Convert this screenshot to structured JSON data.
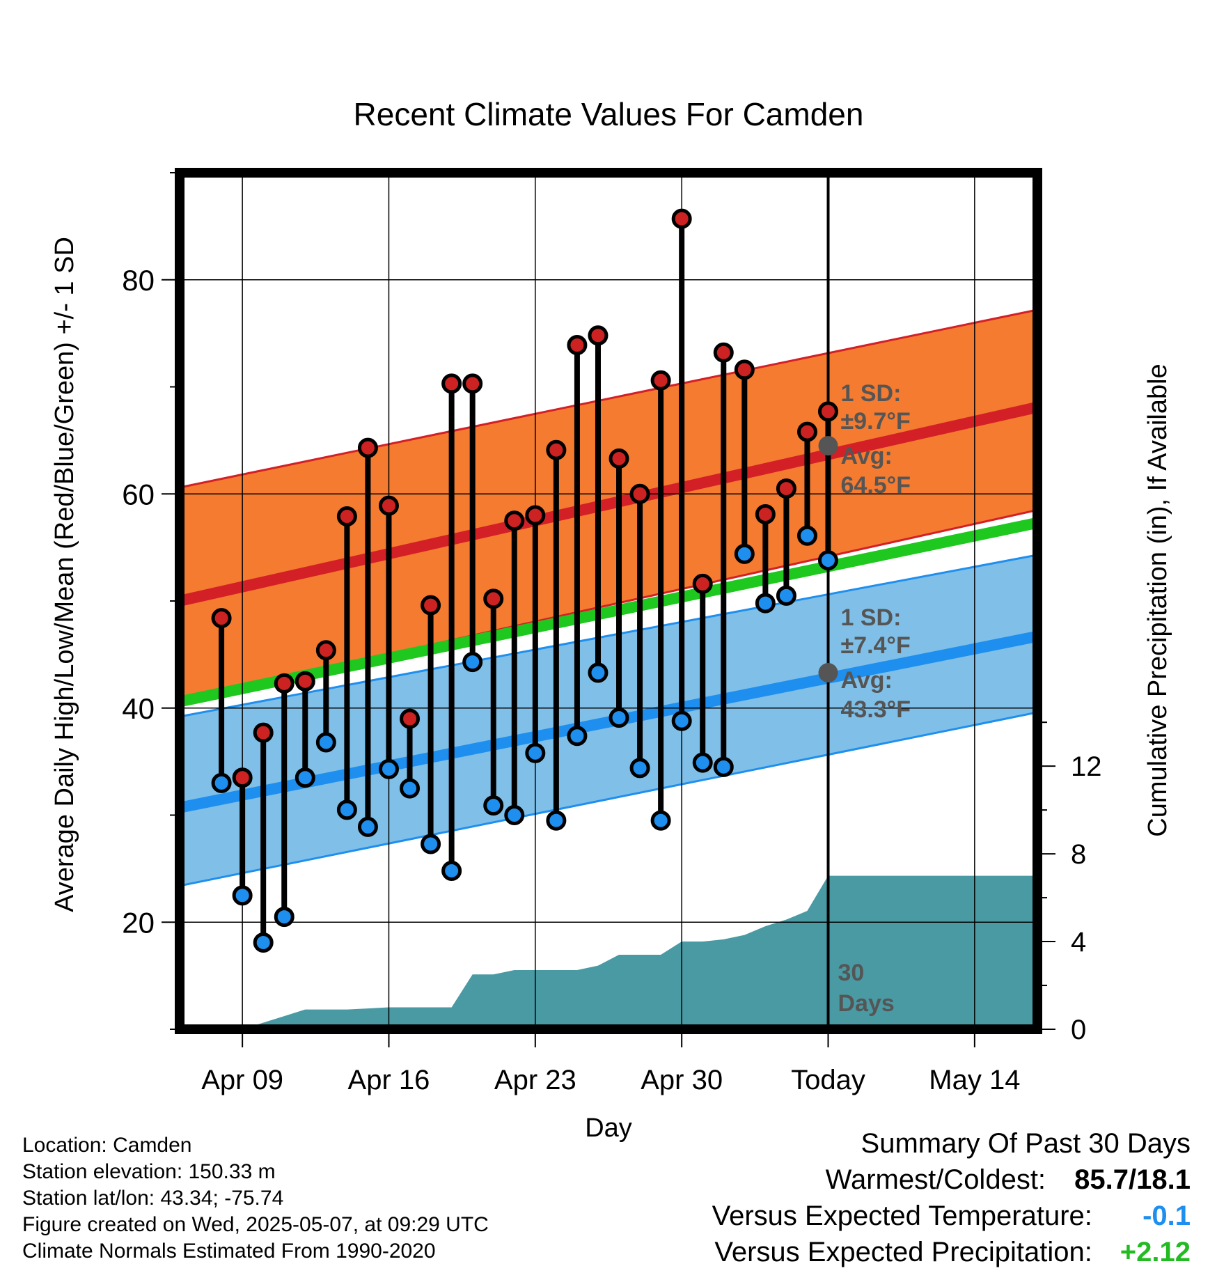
{
  "chart_data": {
    "type": "line",
    "title": "Recent Climate Values For Camden",
    "xlabel": "Day",
    "ylabel": "Average Daily High/Low/Mean (Red/Blue/Green) +/- 1 SD",
    "y2label": "Cumulative Precipitation (in), If Available",
    "xlim": [
      "2025-04-06",
      "2025-05-17"
    ],
    "ylim": [
      10,
      90
    ],
    "y2lim": [
      0,
      25
    ],
    "xticks": [
      "Apr 09",
      "Apr 16",
      "Apr 23",
      "Apr 30",
      "Today",
      "May 14"
    ],
    "yticks": [
      20,
      40,
      60,
      80
    ],
    "y2ticks": [
      0,
      4,
      8,
      12
    ],
    "grid": true,
    "today": "2025-05-07",
    "daily": {
      "dates": [
        "2025-04-08",
        "2025-04-09",
        "2025-04-10",
        "2025-04-11",
        "2025-04-12",
        "2025-04-13",
        "2025-04-14",
        "2025-04-15",
        "2025-04-16",
        "2025-04-17",
        "2025-04-18",
        "2025-04-19",
        "2025-04-20",
        "2025-04-21",
        "2025-04-22",
        "2025-04-23",
        "2025-04-24",
        "2025-04-25",
        "2025-04-26",
        "2025-04-27",
        "2025-04-28",
        "2025-04-29",
        "2025-04-30",
        "2025-05-01",
        "2025-05-02",
        "2025-05-03",
        "2025-05-04",
        "2025-05-05",
        "2025-05-06"
      ],
      "high": [
        48.4,
        33.5,
        37.7,
        42.3,
        42.5,
        45.4,
        57.9,
        64.3,
        58.9,
        39.0,
        49.6,
        70.3,
        70.3,
        50.2,
        57.5,
        58.0,
        64.1,
        73.9,
        74.8,
        63.3,
        60.0,
        70.6,
        85.7,
        51.6,
        73.2,
        71.6,
        58.1,
        60.5,
        65.8
      ],
      "low": [
        33.0,
        22.5,
        18.1,
        20.5,
        33.5,
        36.8,
        30.5,
        28.9,
        34.3,
        32.5,
        27.3,
        24.8,
        44.3,
        30.9,
        30.0,
        35.8,
        29.5,
        37.4,
        43.3,
        39.1,
        34.4,
        29.5,
        38.8,
        34.9,
        34.5,
        54.4,
        49.8,
        50.5,
        56.1
      ]
    },
    "daily_extra": {
      "date": "2025-05-06b",
      "high": 67.7,
      "low": 53.8
    },
    "normals": {
      "high_avg": [
        50.0,
        68.1
      ],
      "high_sd_upper": [
        60.6,
        77.2
      ],
      "high_sd_lower": [
        40.7,
        58.5
      ],
      "mean_avg": [
        40.6,
        57.3
      ],
      "low_avg": [
        30.7,
        46.7
      ],
      "low_sd_upper": [
        39.2,
        54.3
      ],
      "low_sd_lower": [
        23.4,
        39.6
      ],
      "dates": [
        "2025-04-06",
        "2025-05-17"
      ]
    },
    "precip_cumulative": {
      "dates": [
        "2025-04-09",
        "2025-04-10",
        "2025-04-11",
        "2025-04-12",
        "2025-04-13",
        "2025-04-14",
        "2025-04-15",
        "2025-04-16",
        "2025-04-17",
        "2025-04-18",
        "2025-04-19",
        "2025-04-20",
        "2025-04-21",
        "2025-04-22",
        "2025-04-23",
        "2025-04-24",
        "2025-04-25",
        "2025-04-26",
        "2025-04-27",
        "2025-04-28",
        "2025-04-29",
        "2025-04-30",
        "2025-05-01",
        "2025-05-02",
        "2025-05-03",
        "2025-05-04",
        "2025-05-05",
        "2025-05-06",
        "2025-05-07",
        "2025-05-17"
      ],
      "values": [
        0.0,
        0.3,
        0.6,
        0.9,
        0.9,
        0.9,
        0.95,
        1.0,
        1.0,
        1.0,
        1.0,
        2.5,
        2.5,
        2.7,
        2.7,
        2.7,
        2.7,
        2.9,
        3.4,
        3.4,
        3.4,
        4.0,
        4.0,
        4.1,
        4.3,
        4.7,
        5.0,
        5.4,
        7.0,
        7.0
      ]
    },
    "annotations": {
      "high": {
        "sd_label": "1 SD:",
        "sd_value": "±9.7°F",
        "avg_label": "Avg:",
        "avg_value": "64.5°F",
        "avg": 64.5
      },
      "low": {
        "sd_label": "1 SD:",
        "sd_value": "±7.4°F",
        "avg_label": "Avg:",
        "avg_value": "43.3°F",
        "avg": 43.3
      },
      "days_label": "30 Days",
      "days_line1": "30",
      "days_line2": "Days"
    },
    "colors": {
      "high_band": "#f47b30",
      "high_line": "#d32027",
      "low_band": "#80c0e8",
      "low_line": "#1e8fef",
      "mean_line": "#1ec81e",
      "precip": "#4a9aa4",
      "high_dot": "#cc2222",
      "low_dot": "#1e8fef"
    }
  },
  "info": {
    "location": "Location: Camden",
    "elevation": "Station elevation: 150.33 m",
    "latlon": "Station lat/lon: 43.34; -75.74",
    "created": "Figure created on Wed, 2025-05-07, at 09:29 UTC",
    "normals": "Climate Normals Estimated From 1990-2020"
  },
  "summary": {
    "title": "Summary Of Past 30 Days",
    "warmest_label": "Warmest/Coldest:",
    "warmest_value": "85.7/18.1",
    "temp_label": "Versus Expected Temperature:",
    "temp_value": "-0.1",
    "temp_color": "#1e8fef",
    "precip_label": "Versus Expected Precipitation:",
    "precip_value": "+2.12",
    "precip_color": "#22bb22"
  }
}
